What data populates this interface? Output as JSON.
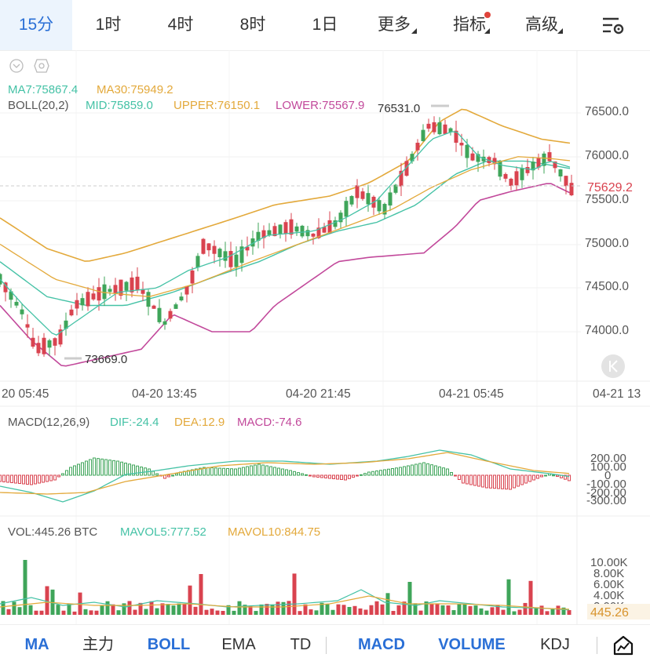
{
  "timeframe_tabs": [
    {
      "label": "15分",
      "active": true
    },
    {
      "label": "1时",
      "active": false
    },
    {
      "label": "4时",
      "active": false
    },
    {
      "label": "8时",
      "active": false
    },
    {
      "label": "1日",
      "active": false
    },
    {
      "label": "更多",
      "active": false
    }
  ],
  "toolbar": {
    "indicators_label": "指标",
    "advanced_label": "高级",
    "settings_icon": "chart-settings-icon"
  },
  "main_chart": {
    "ma_line": {
      "ma7": "MA7:75867.4",
      "ma30": "MA30:75949.2"
    },
    "boll_line": {
      "name": "BOLL(20,2)",
      "mid": "MID:75859.0",
      "upper": "UPPER:76150.1",
      "lower": "LOWER:75567.9"
    },
    "price_axis": [
      "76500.0",
      "76000.0",
      "75500.0",
      "75000.0",
      "74500.0",
      "74000.0"
    ],
    "current_price": "75629.2",
    "high_label": "76531.0",
    "low_label": "73669.0",
    "time_axis": [
      "20 05:45",
      "04-20 13:45",
      "04-20 21:45",
      "04-21 05:45",
      "04-21 13"
    ]
  },
  "macd_panel": {
    "name": "MACD(12,26,9)",
    "dif": "DIF:-24.4",
    "dea": "DEA:12.9",
    "macd": "MACD:-74.6",
    "axis": [
      "200.00",
      "100.00",
      "0",
      "-100.00",
      "-200.00",
      "-300.00"
    ]
  },
  "vol_panel": {
    "vol": "VOL:445.26 BTC",
    "mavol5": "MAVOL5:777.52",
    "mavol10": "MAVOL10:844.75",
    "axis": [
      "10.00K",
      "8.00K",
      "6.00K",
      "4.00K",
      "2.00K"
    ],
    "current": "445.26"
  },
  "bottom_tabs": [
    {
      "label": "MA",
      "active": true
    },
    {
      "label": "主力",
      "active": false
    },
    {
      "label": "BOLL",
      "active": true
    },
    {
      "label": "EMA",
      "active": false
    },
    {
      "label": "TD",
      "active": false
    },
    {
      "label": "MACD",
      "active": true
    },
    {
      "label": "VOLUME",
      "active": true
    },
    {
      "label": "KDJ",
      "active": false
    }
  ],
  "colors": {
    "up": "#3fa55a",
    "down": "#d9434f",
    "accent": "#2a6fd6",
    "ma7": "#45c2a6",
    "ma30": "#e3a93b",
    "lower": "#c2499b"
  }
}
